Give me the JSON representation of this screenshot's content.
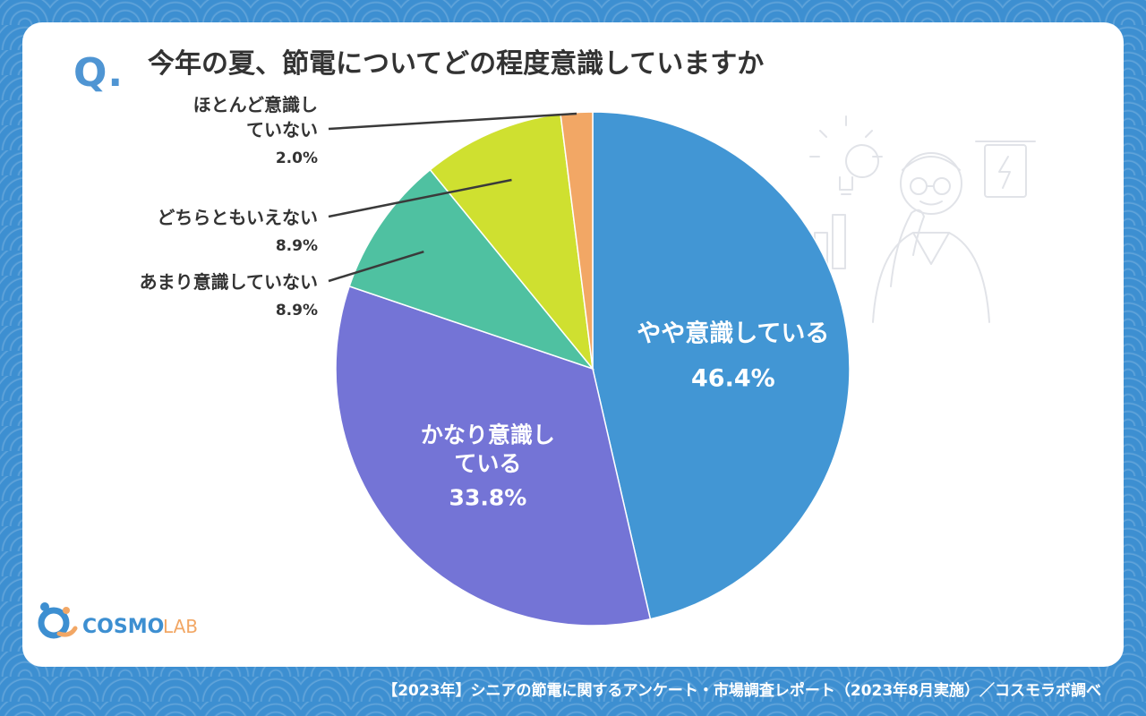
{
  "question_mark": "Q.",
  "title": "今年の夏、節電についてどの程度意識していますか",
  "footer": "【2023年】シニアの節電に関するアンケート・市場調査レポート（2023年8月実施）／コスモラボ調べ",
  "logo": {
    "text_left": "COSMO",
    "text_right": "LAB",
    "icon": "cosmo-lab-logo-icon"
  },
  "colors": {
    "background": "#3d8fd1",
    "accent": "#4f95d3"
  },
  "chart_data": {
    "type": "pie",
    "title": "今年の夏、節電についてどの程度意識していますか",
    "unit": "%",
    "slices": [
      {
        "label": "やや意識している",
        "value": 46.4,
        "value_text": "46.4%",
        "color": "#4296d4",
        "label_position": "inside"
      },
      {
        "label": "かなり意識している",
        "value": 33.8,
        "value_text": "33.8%",
        "color": "#7474d6",
        "label_position": "inside"
      },
      {
        "label": "あまり意識していない",
        "value": 8.9,
        "value_text": "8.9%",
        "color": "#4fc1a1",
        "label_position": "outside"
      },
      {
        "label": "どちらともいえない",
        "value": 8.9,
        "value_text": "8.9%",
        "color": "#cfe030",
        "label_position": "outside"
      },
      {
        "label": "ほとんど意識していない",
        "value": 2.0,
        "value_text": "2.0%",
        "color": "#f2a765",
        "label_position": "outside"
      }
    ],
    "start": "12 o'clock",
    "direction": "clockwise"
  }
}
